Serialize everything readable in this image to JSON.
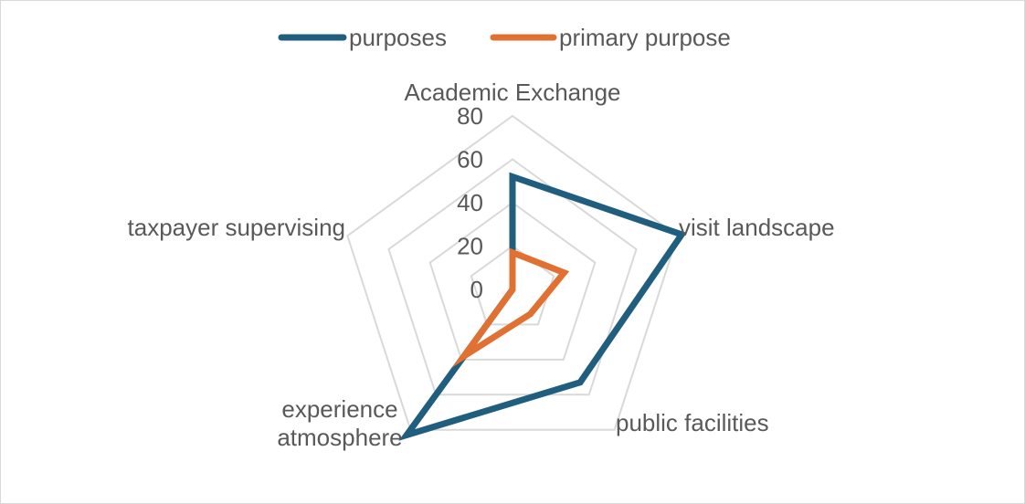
{
  "chart_data": {
    "type": "radar",
    "categories": [
      "Academic Exchange",
      "visit landscape",
      "public facilities",
      "experience atmosphere",
      "taxpayer supervising"
    ],
    "series": [
      {
        "name": "purposes",
        "values": [
          52,
          82,
          53,
          83,
          0
        ],
        "color": "#1f5e7e"
      },
      {
        "name": "primary purpose",
        "values": [
          17,
          25,
          14,
          38,
          0
        ],
        "color": "#e07133"
      }
    ],
    "r_ticks": [
      0,
      20,
      40,
      60,
      80
    ],
    "rlim": [
      0,
      80
    ],
    "grid": true,
    "legend": "top"
  }
}
